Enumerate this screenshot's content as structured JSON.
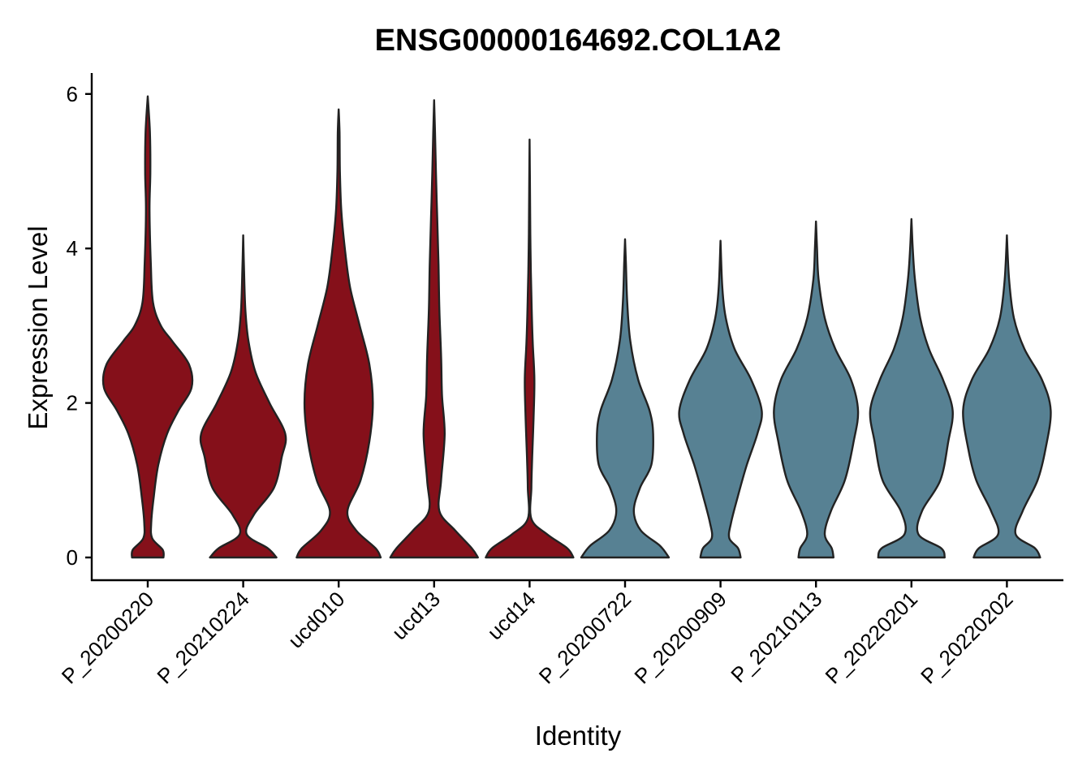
{
  "chart_data": {
    "type": "violin",
    "title": "ENSG00000164692.COL1A2",
    "xlabel": "Identity",
    "ylabel": "Expression Level",
    "ylim": [
      -0.3,
      6.3
    ],
    "yticks": [
      0,
      2,
      4,
      6
    ],
    "grid": false,
    "legend": "none",
    "categories": [
      "P_20200220",
      "P_20210224",
      "ucd010",
      "ucd13",
      "ucd14",
      "P_20200722",
      "P_20200909",
      "P_20210113",
      "P_20220201",
      "P_20220202"
    ],
    "colors": {
      "group_a": "#85101a",
      "group_b": "#578193"
    },
    "violins": [
      {
        "category": "P_20200220",
        "color": "group_a",
        "max": 5.97,
        "profile": [
          [
            0,
            0.18
          ],
          [
            0.1,
            0.17
          ],
          [
            0.25,
            0.05
          ],
          [
            0.45,
            0.04
          ],
          [
            0.8,
            0.07
          ],
          [
            1.2,
            0.12
          ],
          [
            1.6,
            0.22
          ],
          [
            1.9,
            0.35
          ],
          [
            2.2,
            0.5
          ],
          [
            2.5,
            0.47
          ],
          [
            2.8,
            0.28
          ],
          [
            3.0,
            0.15
          ],
          [
            3.3,
            0.06
          ],
          [
            3.8,
            0.035
          ],
          [
            4.5,
            0.02
          ],
          [
            5.0,
            0.03
          ],
          [
            5.5,
            0.025
          ],
          [
            5.97,
            0
          ]
        ]
      },
      {
        "category": "P_20210224",
        "color": "group_a",
        "max": 4.17,
        "profile": [
          [
            0,
            0.38
          ],
          [
            0.12,
            0.28
          ],
          [
            0.3,
            0.04
          ],
          [
            0.55,
            0.12
          ],
          [
            0.9,
            0.35
          ],
          [
            1.3,
            0.44
          ],
          [
            1.6,
            0.48
          ],
          [
            2.0,
            0.3
          ],
          [
            2.4,
            0.14
          ],
          [
            2.8,
            0.06
          ],
          [
            3.2,
            0.025
          ],
          [
            3.7,
            0.01
          ],
          [
            4.17,
            0
          ]
        ]
      },
      {
        "category": "ucd010",
        "color": "group_a",
        "max": 5.8,
        "profile": [
          [
            0,
            0.48
          ],
          [
            0.12,
            0.42
          ],
          [
            0.35,
            0.2
          ],
          [
            0.6,
            0.1
          ],
          [
            1.0,
            0.25
          ],
          [
            1.5,
            0.35
          ],
          [
            2.0,
            0.39
          ],
          [
            2.5,
            0.35
          ],
          [
            3.0,
            0.24
          ],
          [
            3.5,
            0.13
          ],
          [
            4.0,
            0.07
          ],
          [
            4.5,
            0.03
          ],
          [
            5.0,
            0.014
          ],
          [
            5.5,
            0.01
          ],
          [
            5.8,
            0
          ]
        ]
      },
      {
        "category": "ucd13",
        "color": "group_a",
        "max": 5.92,
        "profile": [
          [
            0,
            0.5
          ],
          [
            0.12,
            0.43
          ],
          [
            0.35,
            0.24
          ],
          [
            0.6,
            0.06
          ],
          [
            1.0,
            0.08
          ],
          [
            1.6,
            0.12
          ],
          [
            2.1,
            0.09
          ],
          [
            2.6,
            0.08
          ],
          [
            3.2,
            0.06
          ],
          [
            3.8,
            0.05
          ],
          [
            4.4,
            0.035
          ],
          [
            5.0,
            0.02
          ],
          [
            5.5,
            0.01
          ],
          [
            5.92,
            0
          ]
        ]
      },
      {
        "category": "ucd14",
        "color": "group_a",
        "max": 5.41,
        "profile": [
          [
            0,
            0.5
          ],
          [
            0.12,
            0.43
          ],
          [
            0.3,
            0.2
          ],
          [
            0.5,
            0.02
          ],
          [
            0.9,
            0.02
          ],
          [
            1.3,
            0.03
          ],
          [
            1.8,
            0.045
          ],
          [
            2.3,
            0.055
          ],
          [
            2.8,
            0.035
          ],
          [
            3.4,
            0.02
          ],
          [
            4.0,
            0.01
          ],
          [
            4.6,
            0.006
          ],
          [
            5.41,
            0
          ]
        ]
      },
      {
        "category": "P_20200722",
        "color": "group_b",
        "max": 4.12,
        "profile": [
          [
            0,
            0.5
          ],
          [
            0.15,
            0.4
          ],
          [
            0.35,
            0.18
          ],
          [
            0.6,
            0.1
          ],
          [
            0.9,
            0.17
          ],
          [
            1.2,
            0.3
          ],
          [
            1.6,
            0.32
          ],
          [
            1.9,
            0.28
          ],
          [
            2.3,
            0.15
          ],
          [
            2.8,
            0.06
          ],
          [
            3.3,
            0.025
          ],
          [
            3.8,
            0.01
          ],
          [
            4.12,
            0
          ]
        ]
      },
      {
        "category": "P_20200909",
        "color": "group_b",
        "max": 4.1,
        "profile": [
          [
            0,
            0.23
          ],
          [
            0.12,
            0.2
          ],
          [
            0.25,
            0.1
          ],
          [
            0.45,
            0.12
          ],
          [
            0.8,
            0.2
          ],
          [
            1.2,
            0.3
          ],
          [
            1.6,
            0.42
          ],
          [
            1.9,
            0.47
          ],
          [
            2.3,
            0.35
          ],
          [
            2.7,
            0.16
          ],
          [
            3.1,
            0.06
          ],
          [
            3.5,
            0.02
          ],
          [
            4.1,
            0
          ]
        ]
      },
      {
        "category": "P_20210113",
        "color": "group_b",
        "max": 4.35,
        "profile": [
          [
            0,
            0.2
          ],
          [
            0.12,
            0.18
          ],
          [
            0.3,
            0.1
          ],
          [
            0.6,
            0.17
          ],
          [
            1.0,
            0.33
          ],
          [
            1.5,
            0.43
          ],
          [
            1.9,
            0.48
          ],
          [
            2.3,
            0.4
          ],
          [
            2.7,
            0.22
          ],
          [
            3.1,
            0.1
          ],
          [
            3.6,
            0.03
          ],
          [
            4.0,
            0.012
          ],
          [
            4.35,
            0
          ]
        ]
      },
      {
        "category": "P_20220201",
        "color": "group_b",
        "max": 4.38,
        "profile": [
          [
            0,
            0.38
          ],
          [
            0.12,
            0.34
          ],
          [
            0.3,
            0.08
          ],
          [
            0.6,
            0.12
          ],
          [
            1.0,
            0.33
          ],
          [
            1.5,
            0.42
          ],
          [
            1.9,
            0.47
          ],
          [
            2.3,
            0.36
          ],
          [
            2.7,
            0.2
          ],
          [
            3.1,
            0.1
          ],
          [
            3.6,
            0.04
          ],
          [
            4.0,
            0.015
          ],
          [
            4.38,
            0
          ]
        ]
      },
      {
        "category": "P_20220202",
        "color": "group_b",
        "max": 4.17,
        "profile": [
          [
            0,
            0.38
          ],
          [
            0.12,
            0.32
          ],
          [
            0.3,
            0.1
          ],
          [
            0.6,
            0.18
          ],
          [
            1.0,
            0.35
          ],
          [
            1.4,
            0.44
          ],
          [
            1.9,
            0.5
          ],
          [
            2.3,
            0.4
          ],
          [
            2.7,
            0.2
          ],
          [
            3.1,
            0.08
          ],
          [
            3.6,
            0.025
          ],
          [
            4.17,
            0
          ]
        ]
      }
    ]
  }
}
